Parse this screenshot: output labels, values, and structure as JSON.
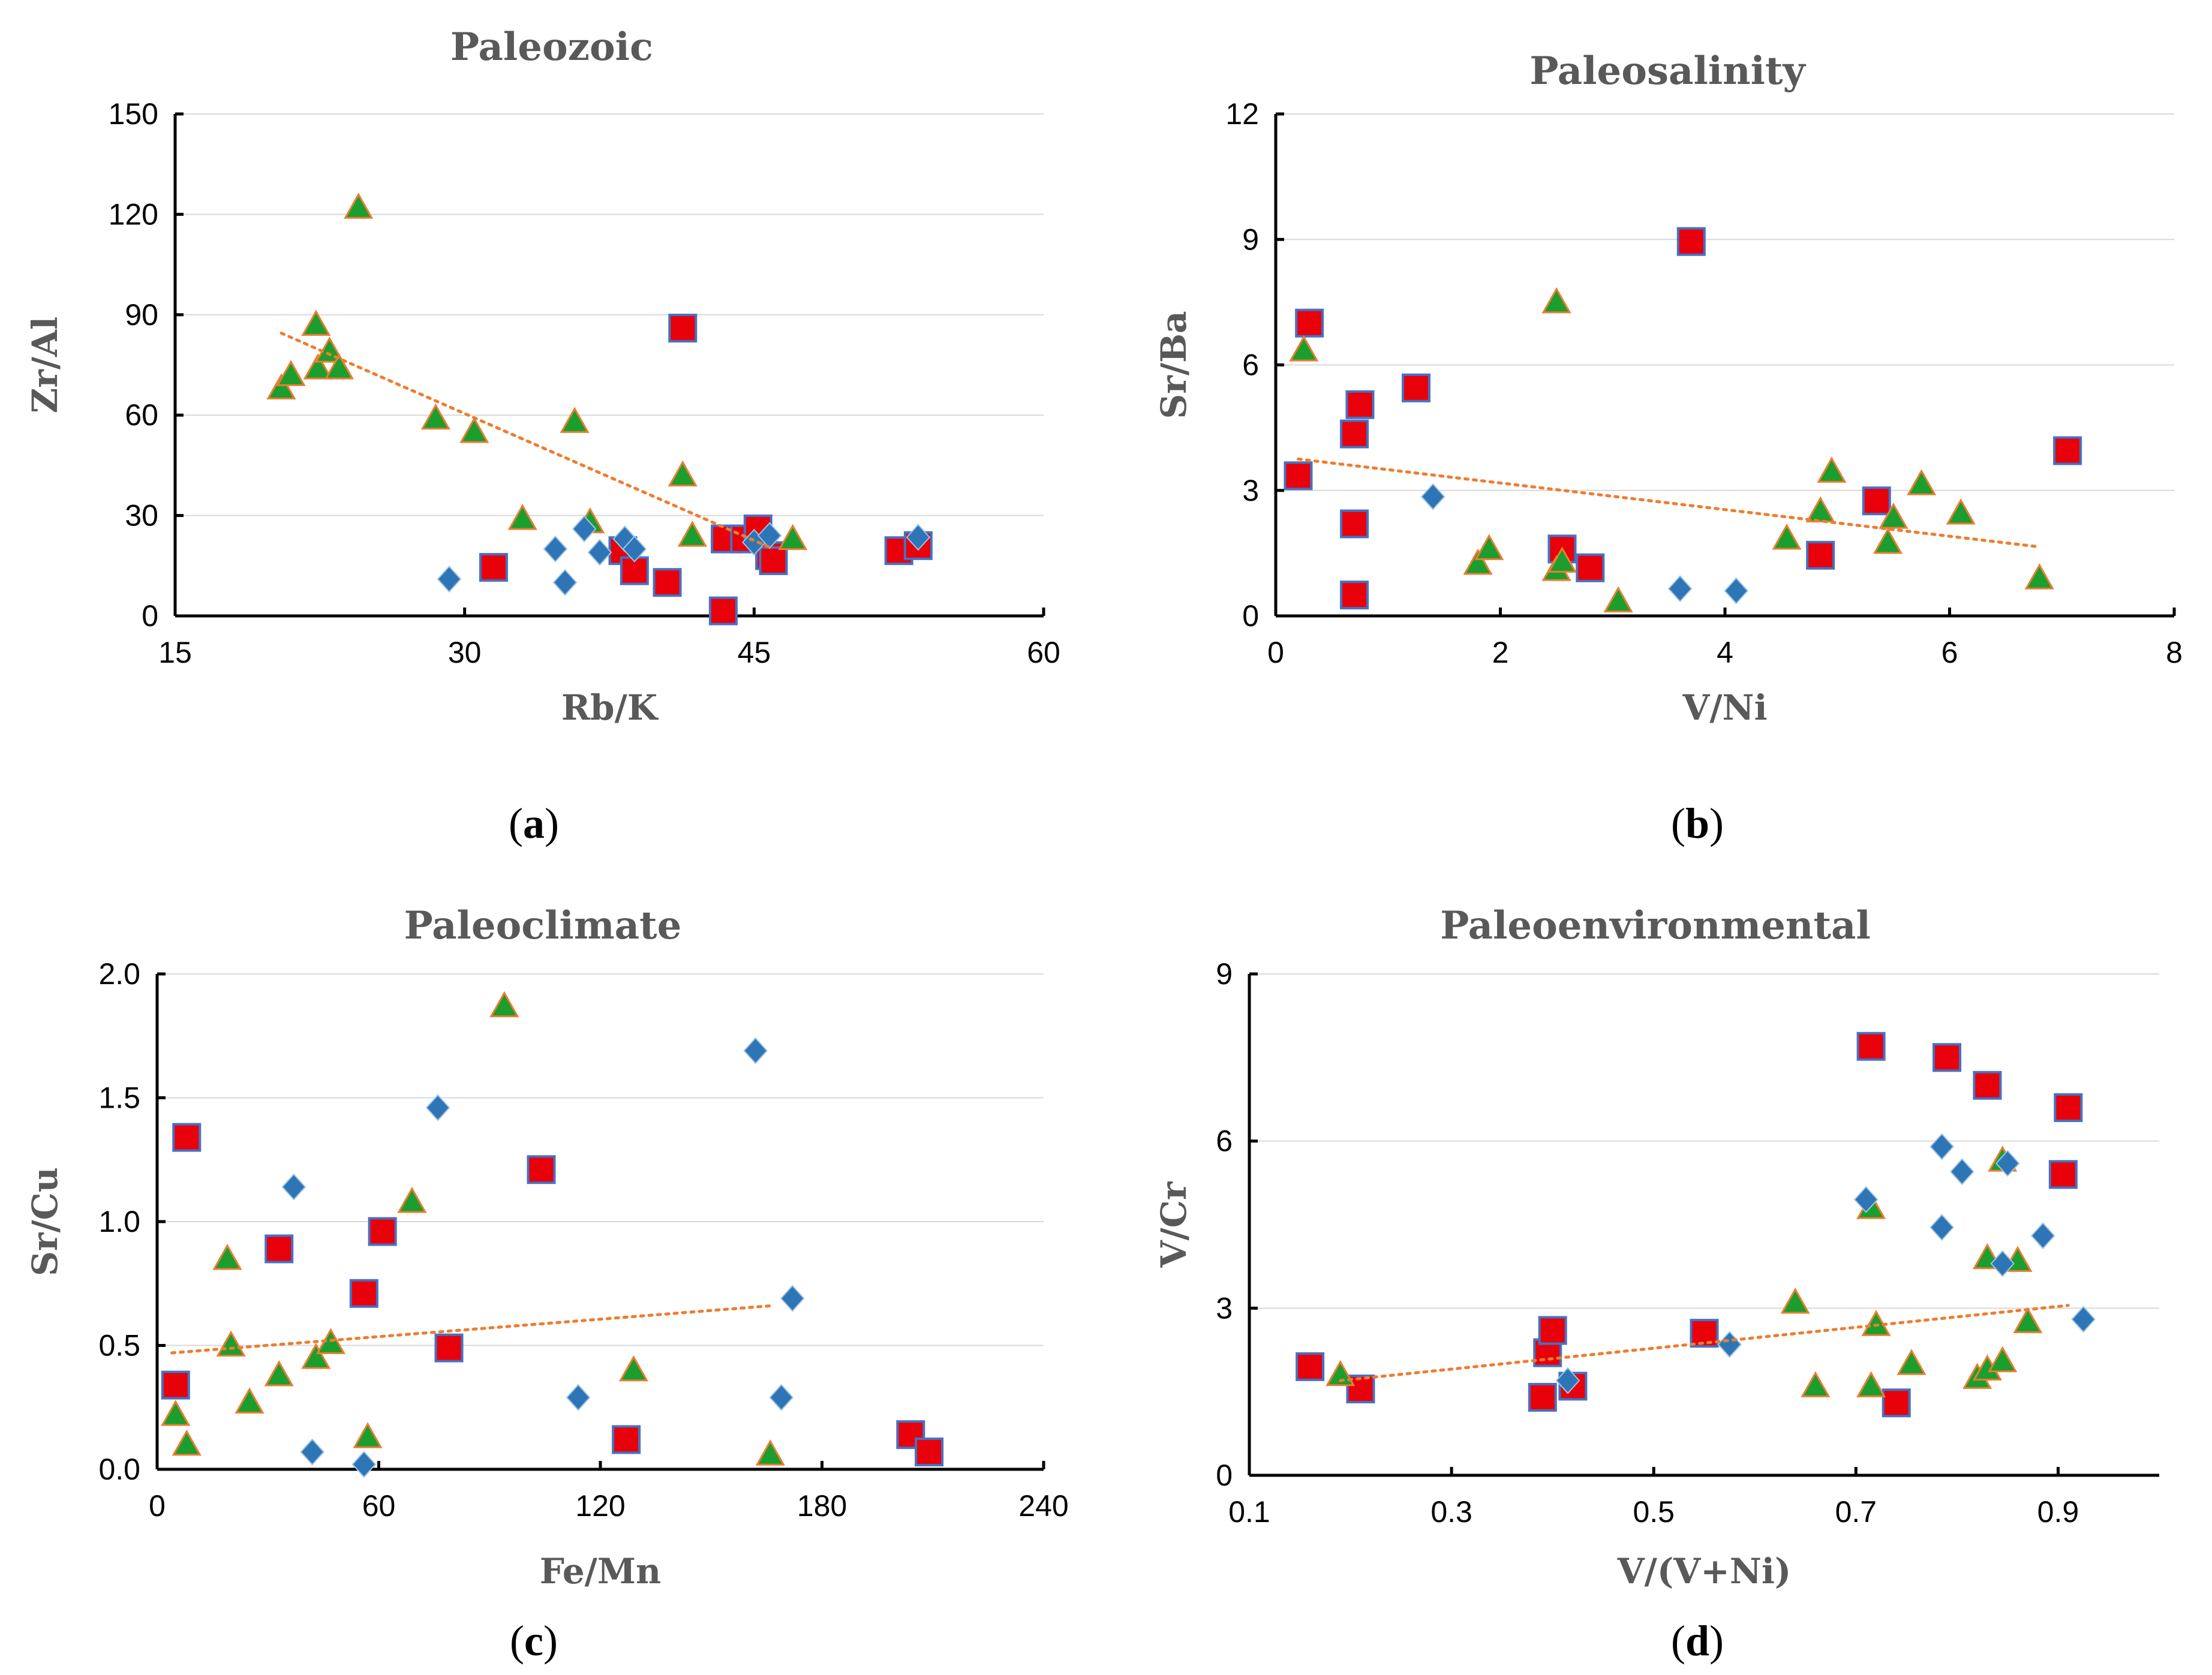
{
  "figure": {
    "panels": [
      {
        "letter": "a",
        "open": "(",
        "close": ")"
      },
      {
        "letter": "b",
        "open": "(",
        "close": ")"
      },
      {
        "letter": "c",
        "open": "(",
        "close": ")"
      },
      {
        "letter": "d",
        "open": "(",
        "close": ")"
      }
    ]
  },
  "colors": {
    "square_fill": "#E8000B",
    "square_edge": "#4472C4",
    "triangle_fill": "#1B9E2E",
    "triangle_edge": "#ED7D31",
    "diamond_fill": "#2E75B6",
    "trend": "#ED7D31"
  },
  "chart_data": [
    {
      "type": "scatter",
      "title": "Paleozoic",
      "xlabel": "Rb/K",
      "ylabel": "Zr/Al",
      "xlim": [
        15,
        60
      ],
      "ylim": [
        0,
        150
      ],
      "xticks": [
        15,
        30,
        45,
        60
      ],
      "yticks": [
        0,
        30,
        60,
        90,
        120,
        150
      ],
      "ytick_labels": [
        "0",
        "30",
        "60",
        "90",
        "120",
        "150"
      ],
      "grid": "horizontal",
      "series": [
        {
          "name": "square",
          "marker": "square",
          "points": [
            [
              31.5,
              14.5
            ],
            [
              38.2,
              19.5
            ],
            [
              38.8,
              13.5
            ],
            [
              40.5,
              10
            ],
            [
              41.3,
              86
            ],
            [
              43.5,
              23
            ],
            [
              43.4,
              1.5
            ],
            [
              44.5,
              23
            ],
            [
              45.2,
              26
            ],
            [
              45.8,
              18
            ],
            [
              46,
              16.5
            ],
            [
              52.5,
              19.5
            ],
            [
              53.5,
              21
            ]
          ]
        },
        {
          "name": "triangle",
          "marker": "triangle",
          "points": [
            [
              20.5,
              68
            ],
            [
              21,
              72
            ],
            [
              22.3,
              87
            ],
            [
              22.4,
              74
            ],
            [
              23,
              79
            ],
            [
              23.5,
              74
            ],
            [
              24.5,
              122
            ],
            [
              28.5,
              59
            ],
            [
              30.5,
              55
            ],
            [
              33,
              29
            ],
            [
              35.7,
              58
            ],
            [
              36.5,
              28
            ],
            [
              41.3,
              42
            ],
            [
              41.8,
              24
            ],
            [
              47,
              23
            ]
          ]
        },
        {
          "name": "diamond",
          "marker": "diamond",
          "points": [
            [
              29.2,
              11
            ],
            [
              34.7,
              20
            ],
            [
              35.2,
              10
            ],
            [
              36.2,
              26
            ],
            [
              37,
              19
            ],
            [
              38.3,
              23
            ],
            [
              38.8,
              20
            ],
            [
              45,
              22
            ],
            [
              45.8,
              24
            ],
            [
              53.5,
              23.5
            ]
          ]
        }
      ],
      "trendline": {
        "x": [
          20.5,
          46
        ],
        "y": [
          84.5,
          20
        ]
      }
    },
    {
      "type": "scatter",
      "title": "Paleosalinity",
      "xlabel": "V/Ni",
      "ylabel": "Sr/Ba",
      "xlim": [
        0,
        8
      ],
      "ylim": [
        0,
        12
      ],
      "xticks": [
        0,
        2,
        4,
        6,
        8
      ],
      "yticks": [
        0,
        3,
        6,
        9,
        12
      ],
      "ytick_labels": [
        "0",
        "3",
        "6",
        "9",
        "12"
      ],
      "grid": "horizontal",
      "series": [
        {
          "name": "square",
          "marker": "square",
          "points": [
            [
              0.2,
              3.35
            ],
            [
              0.3,
              7
            ],
            [
              0.7,
              4.35
            ],
            [
              0.7,
              2.2
            ],
            [
              0.7,
              0.5
            ],
            [
              0.75,
              5.05
            ],
            [
              1.25,
              5.45
            ],
            [
              2.55,
              1.6
            ],
            [
              2.8,
              1.15
            ],
            [
              3.7,
              8.95
            ],
            [
              4.85,
              1.45
            ],
            [
              5.35,
              2.75
            ],
            [
              7.05,
              3.95
            ]
          ]
        },
        {
          "name": "triangle",
          "marker": "triangle",
          "points": [
            [
              0.25,
              6.35
            ],
            [
              1.8,
              1.25
            ],
            [
              1.9,
              1.6
            ],
            [
              2.5,
              7.5
            ],
            [
              2.5,
              1.1
            ],
            [
              2.55,
              1.3
            ],
            [
              3.05,
              0.35
            ],
            [
              4.55,
              1.85
            ],
            [
              4.85,
              2.5
            ],
            [
              4.95,
              3.45
            ],
            [
              5.45,
              1.75
            ],
            [
              5.5,
              2.35
            ],
            [
              5.75,
              3.15
            ],
            [
              6.1,
              2.45
            ],
            [
              6.8,
              0.9
            ]
          ]
        },
        {
          "name": "diamond",
          "marker": "diamond",
          "points": [
            [
              1.4,
              2.85
            ],
            [
              3.6,
              0.65
            ],
            [
              4.1,
              0.6
            ]
          ]
        }
      ],
      "trendline": {
        "x": [
          0.2,
          6.8
        ],
        "y": [
          3.75,
          1.65
        ]
      }
    },
    {
      "type": "scatter",
      "title": "Paleoclimate",
      "xlabel": "Fe/Mn",
      "ylabel": "Sr/Cu",
      "xlim": [
        0,
        240
      ],
      "ylim": [
        0,
        2
      ],
      "xticks": [
        0,
        60,
        120,
        180,
        240
      ],
      "yticks": [
        0,
        0.5,
        1,
        1.5,
        2
      ],
      "ytick_labels": [
        "0.0",
        "0.5",
        "1.0",
        "1.5",
        "2.0"
      ],
      "grid": "horizontal",
      "series": [
        {
          "name": "square",
          "marker": "square",
          "points": [
            [
              5,
              0.34
            ],
            [
              8,
              1.34
            ],
            [
              33,
              0.89
            ],
            [
              56,
              0.71
            ],
            [
              61,
              0.96
            ],
            [
              79,
              0.49
            ],
            [
              104,
              1.21
            ],
            [
              127,
              0.12
            ],
            [
              204,
              0.14
            ],
            [
              209,
              0.07
            ]
          ]
        },
        {
          "name": "triangle",
          "marker": "triangle",
          "points": [
            [
              5,
              0.22
            ],
            [
              8,
              0.1
            ],
            [
              19,
              0.85
            ],
            [
              20,
              0.5
            ],
            [
              25,
              0.27
            ],
            [
              33,
              0.38
            ],
            [
              43,
              0.45
            ],
            [
              47,
              0.51
            ],
            [
              57,
              0.13
            ],
            [
              69,
              1.08
            ],
            [
              94,
              1.87
            ],
            [
              129,
              0.4
            ],
            [
              166,
              0.06
            ]
          ]
        },
        {
          "name": "diamond",
          "marker": "diamond",
          "points": [
            [
              37,
              1.14
            ],
            [
              42,
              0.07
            ],
            [
              56,
              0.02
            ],
            [
              76,
              1.46
            ],
            [
              114,
              0.29
            ],
            [
              162,
              1.69
            ],
            [
              169,
              0.29
            ],
            [
              172,
              0.69
            ]
          ]
        }
      ],
      "trendline": {
        "x": [
          4,
          166
        ],
        "y": [
          0.47,
          0.66
        ]
      }
    },
    {
      "type": "scatter",
      "title": "Paleoenvironmental",
      "xlabel": "V/(V+Ni)",
      "ylabel": "V/Cr",
      "xlim": [
        0.1,
        1.0
      ],
      "ylim": [
        0,
        9
      ],
      "xticks": [
        0.1,
        0.3,
        0.5,
        0.7,
        0.9
      ],
      "xtick_labels": [
        "0.1",
        "0.3",
        "0.5",
        "0.7",
        "0.9"
      ],
      "yticks": [
        0,
        3,
        6,
        9
      ],
      "ytick_labels": [
        "0",
        "3",
        "6",
        "9"
      ],
      "grid": "horizontal",
      "series": [
        {
          "name": "square",
          "marker": "square",
          "points": [
            [
              0.16,
              1.95
            ],
            [
              0.21,
              1.55
            ],
            [
              0.39,
              1.4
            ],
            [
              0.395,
              2.2
            ],
            [
              0.4,
              2.6
            ],
            [
              0.42,
              1.6
            ],
            [
              0.55,
              2.55
            ],
            [
              0.715,
              7.7
            ],
            [
              0.74,
              1.3
            ],
            [
              0.79,
              7.5
            ],
            [
              0.83,
              7
            ],
            [
              0.905,
              5.4
            ],
            [
              0.91,
              6.6
            ]
          ]
        },
        {
          "name": "triangle",
          "marker": "triangle",
          "points": [
            [
              0.19,
              1.8
            ],
            [
              0.64,
              3.1
            ],
            [
              0.66,
              1.6
            ],
            [
              0.715,
              1.6
            ],
            [
              0.715,
              4.8
            ],
            [
              0.72,
              2.7
            ],
            [
              0.755,
              2
            ],
            [
              0.82,
              1.75
            ],
            [
              0.83,
              1.9
            ],
            [
              0.83,
              3.9
            ],
            [
              0.845,
              2.05
            ],
            [
              0.845,
              5.65
            ],
            [
              0.86,
              3.85
            ],
            [
              0.87,
              2.75
            ]
          ]
        },
        {
          "name": "diamond",
          "marker": "diamond",
          "points": [
            [
              0.415,
              1.7
            ],
            [
              0.575,
              2.35
            ],
            [
              0.71,
              4.95
            ],
            [
              0.785,
              4.45
            ],
            [
              0.785,
              5.9
            ],
            [
              0.805,
              5.45
            ],
            [
              0.845,
              3.8
            ],
            [
              0.85,
              5.6
            ],
            [
              0.885,
              4.3
            ],
            [
              0.925,
              2.8
            ]
          ]
        }
      ],
      "trendline": {
        "x": [
          0.19,
          0.91
        ],
        "y": [
          1.7,
          3.05
        ]
      }
    }
  ]
}
